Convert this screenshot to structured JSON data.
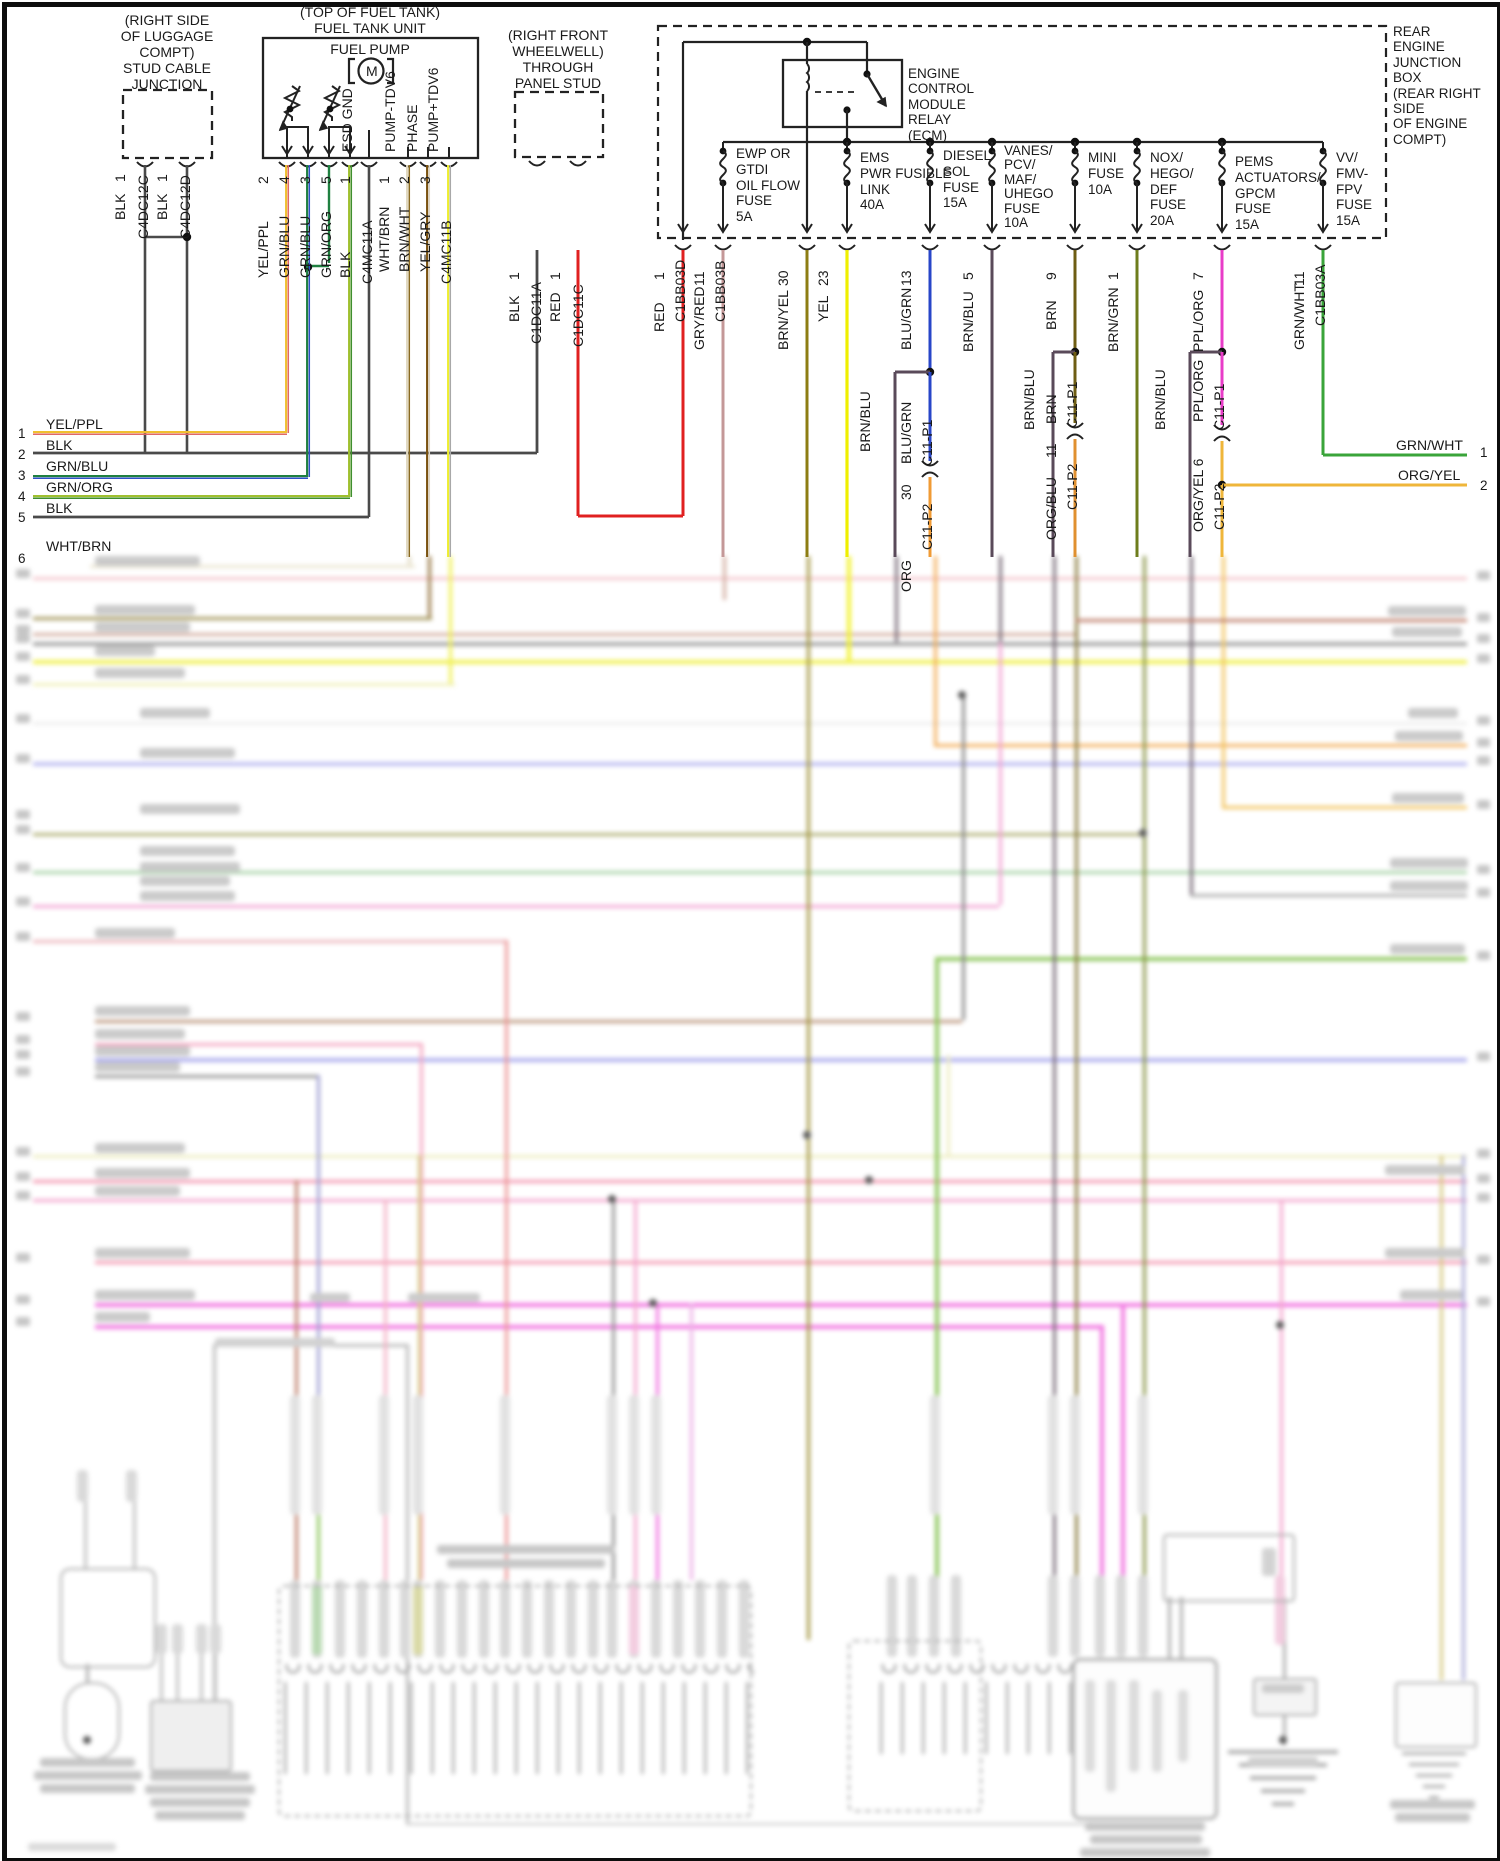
{
  "diagram": {
    "luggage": {
      "title": "(RIGHT SIDE\nOF LUGGAGE\nCOMPT)\nSTUD CABLE\nJUNCTION",
      "wire1": {
        "color": "BLK",
        "pin": "1",
        "conn": "C4DC12C"
      },
      "wire2": {
        "color": "BLK",
        "pin": "1",
        "conn": "C4DC12D"
      }
    },
    "fuel_pump": {
      "header": "(TOP OF FUEL TANK)\nFUEL TANK UNIT",
      "title": "FUEL PUMP",
      "motor": "M",
      "terminals": [
        "ESD GND",
        "PUMP-TDV6",
        "PHASE",
        "PUMP+TDV6"
      ],
      "wires": [
        {
          "color": "YEL/PPL",
          "pin": "2"
        },
        {
          "color": "GRN/BLU",
          "pin": "4"
        },
        {
          "color": "GRN/BLU",
          "pin": "3"
        },
        {
          "color": "GRN/ORG",
          "pin": "5"
        },
        {
          "color": "BLK",
          "pin": "1"
        },
        {
          "color": "WHT/BRN",
          "pin": "1"
        },
        {
          "color": "BRN/WHT",
          "pin": "2"
        },
        {
          "color": "YEL/GRY",
          "pin": "3"
        }
      ],
      "conn_a": "C4MC11A",
      "conn_b": "C4MC11B"
    },
    "wheelwell": {
      "title": "(RIGHT FRONT\nWHEELWELL)\nTHROUGH\nPANEL STUD",
      "wire1": {
        "color": "BLK",
        "pin": "1",
        "conn": "C1DC11A"
      },
      "wire2": {
        "color": "RED",
        "pin": "1",
        "conn": "C1DC11C"
      }
    },
    "junction_box": {
      "title": "REAR\nENGINE\nJUNCTION\nBOX\n(REAR RIGHT\nSIDE\nOF ENGINE\nCOMPT)",
      "relay_label": "ENGINE\nCONTROL\nMODULE\nRELAY\n(ECM)",
      "fuses": [
        {
          "label": "EWP OR\nGTDI\nOIL FLOW\nFUSE\n5A"
        },
        {
          "label": "EMS\nPWR FUSIBLE\nLINK\n40A"
        },
        {
          "label": "DIESEL\nSOL\nFUSE\n15A"
        },
        {
          "label": "VANES/\nPCV/\nMAF/\nUHEGO\nFUSE\n10A"
        },
        {
          "label": "MINI\nFUSE\n10A"
        },
        {
          "label": "NOX/\nHEGO/\nDEF\nFUSE\n20A"
        },
        {
          "label": "PEMS\nACTUATORS/\nGPCM\nFUSE\n15A"
        },
        {
          "label": "VV/\nFMV-\nFPV\nFUSE\n15A"
        }
      ],
      "outputs": [
        {
          "color": "RED",
          "pin": "1",
          "conn": "C1BB03D"
        },
        {
          "color": "GRY/RED",
          "pin": "11",
          "conn": "C1BB03B"
        },
        {
          "color": "BRN/YEL",
          "pin": "30"
        },
        {
          "color": "YEL",
          "pin": "23"
        },
        {
          "color": "BLU/GRN",
          "pin": "13"
        },
        {
          "color": "BRN/BLU",
          "pin": "5"
        },
        {
          "color": "BRN",
          "pin": "9"
        },
        {
          "color": "BRN/GRN",
          "pin": "1"
        },
        {
          "color": "PPL/ORG",
          "pin": "7"
        },
        {
          "color": "GRN/WHT",
          "pin": "11",
          "conn": "C1BB03A"
        }
      ]
    },
    "splices": {
      "c11p1": "C11-P1",
      "c11p2": "C11-P2",
      "branch_color": "BRN/BLU",
      "s1_above": "BLU/GRN",
      "s1_below": "ORG",
      "s1_pin": "30",
      "s2_above": "BRN",
      "s2_below": "ORG/BLU",
      "s2_pin": "11",
      "s3_above": "PPL/ORG",
      "s3_below": "ORG/YEL 6"
    },
    "left_margin": [
      {
        "num": "1",
        "label": "YEL/PPL"
      },
      {
        "num": "2",
        "label": "BLK"
      },
      {
        "num": "3",
        "label": "GRN/BLU"
      },
      {
        "num": "4",
        "label": "GRN/ORG"
      },
      {
        "num": "5",
        "label": "BLK"
      },
      {
        "num": "6",
        "label": "WHT/BRN"
      }
    ],
    "right_margin": [
      {
        "num": "1",
        "label": "GRN/WHT"
      },
      {
        "num": "2",
        "label": "ORG/YEL"
      }
    ],
    "colors": {
      "red": "#e02020",
      "gry_red": "#c49898",
      "brn_yel": "#8d7d13",
      "yel": "#efef00",
      "blu_grn": "#2846c8",
      "brn_blu": "#5a4a5a",
      "brn": "#6e5d13",
      "brn_grn": "#6e7d1d",
      "ppl_org": "#e83cc8",
      "grn_wht": "#3aa43a",
      "org": "#f09b35",
      "org_yel": "#efb63a",
      "org_blu": "#e09030",
      "blk": "#4a4a4a"
    }
  }
}
